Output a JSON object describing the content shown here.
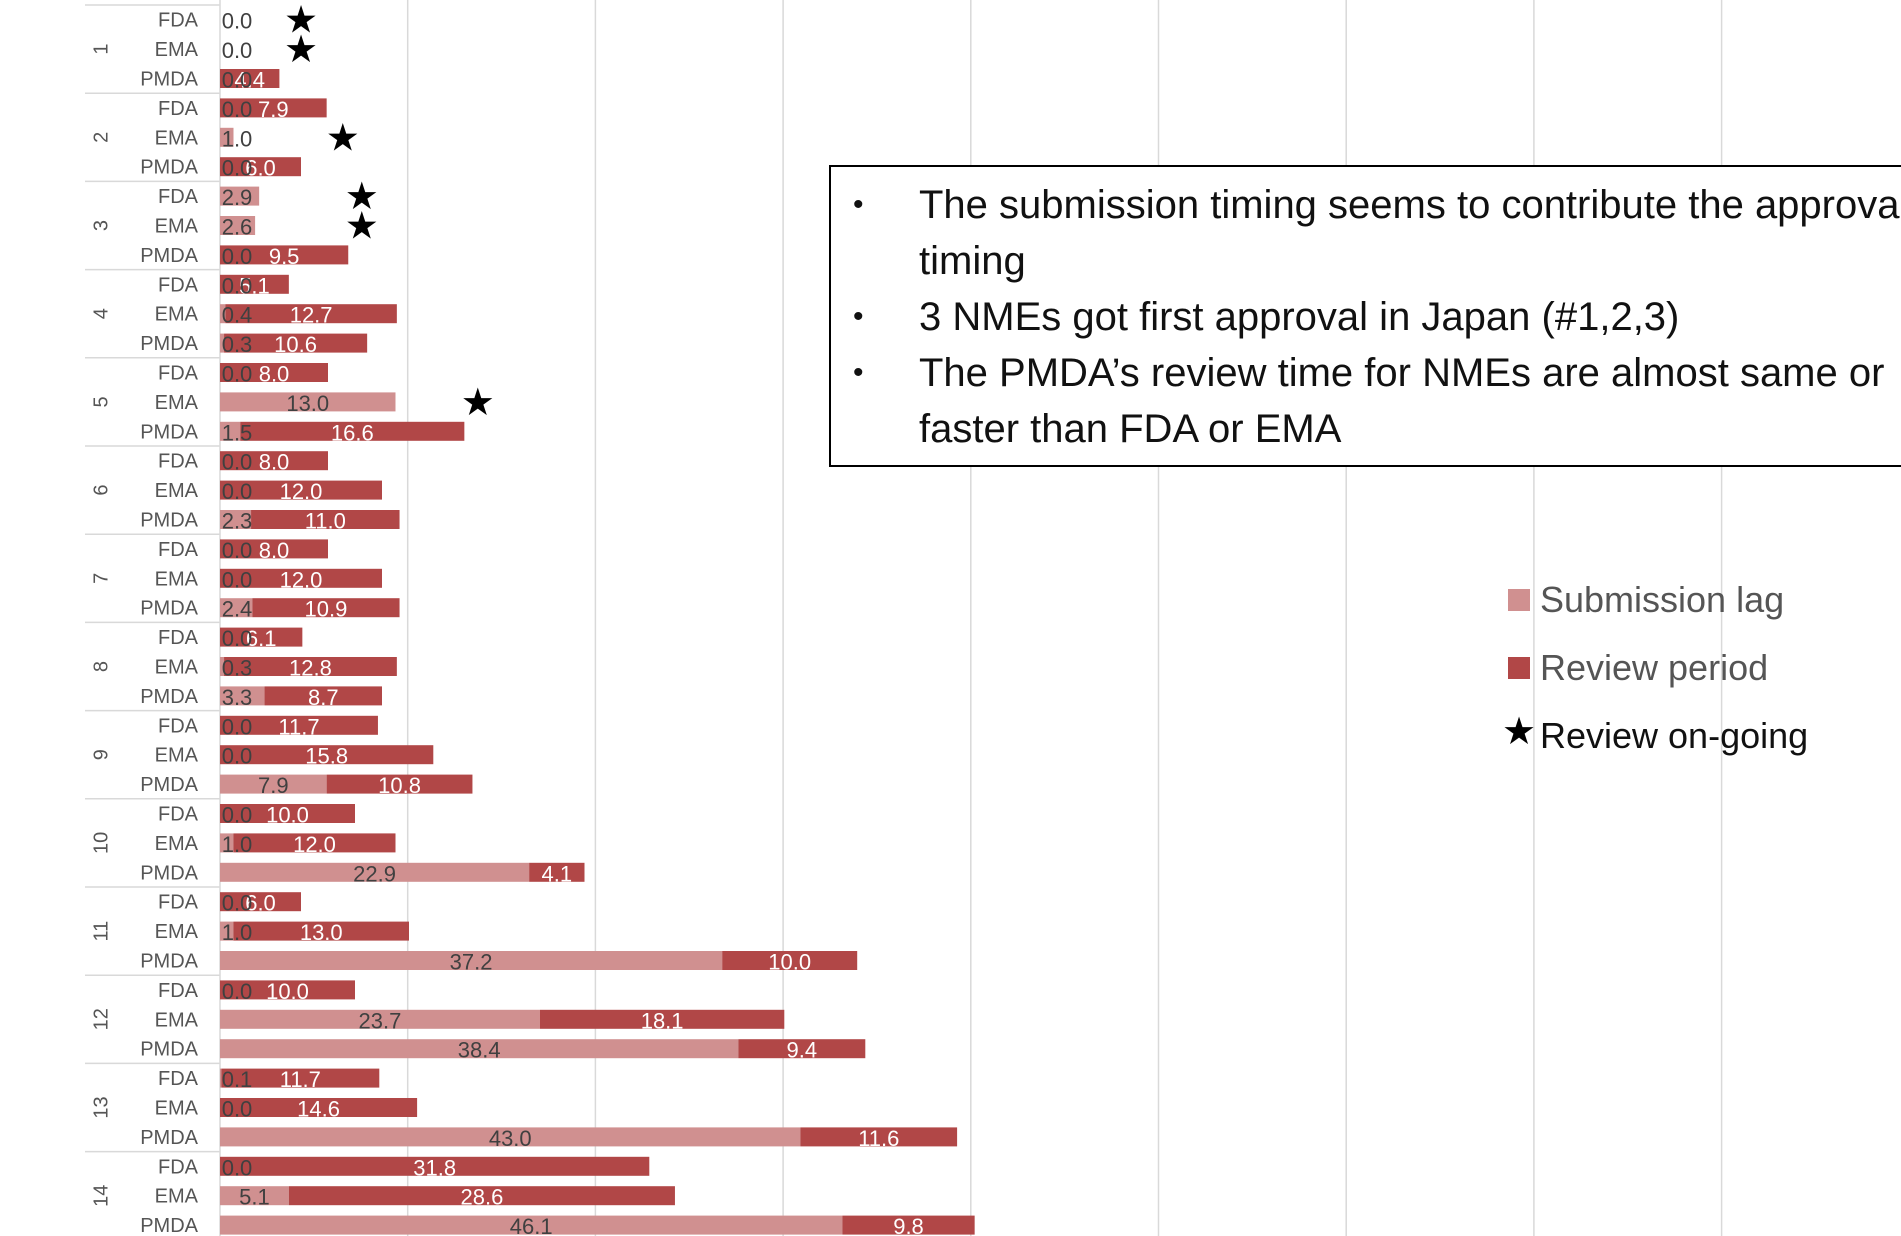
{
  "colors": {
    "lag": "#D09090",
    "review": "#B14747",
    "grid": "#D9D9D9",
    "label": "#555555"
  },
  "callout": {
    "bullets": [
      "The submission timing seems to contribute the approval timing",
      "3 NMEs got first approval in Japan (#1,2,3)",
      "The PMDA’s review time for NMEs are almost same or faster than FDA or EMA"
    ]
  },
  "legend": {
    "lag_label": "Submission lag",
    "review_label": "Review period",
    "ongoing_label": "Review on-going",
    "ongoing_icon": "star-icon"
  },
  "chart_data": {
    "type": "bar",
    "orientation": "horizontal",
    "stacked": true,
    "grid": true,
    "legend_position": "right",
    "series_names": [
      "Submission lag",
      "Review period"
    ],
    "groups": [
      {
        "group": "1",
        "rows": [
          {
            "agency": "FDA",
            "lag": 0.0,
            "lag_label": "0.0",
            "review": null,
            "review_label": "",
            "ongoing": true,
            "star_pos": 6.0
          },
          {
            "agency": "EMA",
            "lag": 0.0,
            "lag_label": "0.0",
            "review": null,
            "review_label": "",
            "ongoing": true,
            "star_pos": 6.0
          },
          {
            "agency": "PMDA",
            "lag": 0.0,
            "lag_label": "0.0",
            "review": 4.4,
            "review_label": "4.4",
            "ongoing": false
          }
        ]
      },
      {
        "group": "2",
        "rows": [
          {
            "agency": "FDA",
            "lag": 0.0,
            "lag_label": "0.0",
            "review": 7.9,
            "review_label": "7.9",
            "ongoing": false
          },
          {
            "agency": "EMA",
            "lag": 1.0,
            "lag_label": "1.0",
            "review": null,
            "review_label": "",
            "ongoing": true,
            "star_pos": 9.1
          },
          {
            "agency": "PMDA",
            "lag": 0.0,
            "lag_label": "0.0",
            "review": 6.0,
            "review_label": "6.0",
            "ongoing": false
          }
        ]
      },
      {
        "group": "3",
        "rows": [
          {
            "agency": "FDA",
            "lag": 2.9,
            "lag_label": "2.9",
            "review": null,
            "review_label": "",
            "ongoing": true,
            "star_pos": 10.5
          },
          {
            "agency": "EMA",
            "lag": 2.6,
            "lag_label": "2.6",
            "review": null,
            "review_label": "",
            "ongoing": true,
            "star_pos": 10.5
          },
          {
            "agency": "PMDA",
            "lag": 0.0,
            "lag_label": "0.0",
            "review": 9.5,
            "review_label": "9.5",
            "ongoing": false
          }
        ]
      },
      {
        "group": "4",
        "rows": [
          {
            "agency": "FDA",
            "lag": 0.0,
            "lag_label": "0.0",
            "review": 5.1,
            "review_label": "5.1",
            "ongoing": false
          },
          {
            "agency": "EMA",
            "lag": 0.4,
            "lag_label": "0.4",
            "review": 12.7,
            "review_label": "12.7",
            "ongoing": false
          },
          {
            "agency": "PMDA",
            "lag": 0.3,
            "lag_label": "0.3",
            "review": 10.6,
            "review_label": "10.6",
            "ongoing": false
          }
        ]
      },
      {
        "group": "5",
        "rows": [
          {
            "agency": "FDA",
            "lag": 0.0,
            "lag_label": "0.0",
            "review": 8.0,
            "review_label": "8.0",
            "ongoing": false
          },
          {
            "agency": "EMA",
            "lag": 13.0,
            "lag_label": "13.0",
            "review": null,
            "review_label": "",
            "ongoing": true,
            "star_pos": 19.1
          },
          {
            "agency": "PMDA",
            "lag": 1.5,
            "lag_label": "1.5",
            "review": 16.6,
            "review_label": "16.6",
            "ongoing": false
          }
        ]
      },
      {
        "group": "6",
        "rows": [
          {
            "agency": "FDA",
            "lag": 0.0,
            "lag_label": "0.0",
            "review": 8.0,
            "review_label": "8.0",
            "ongoing": false
          },
          {
            "agency": "EMA",
            "lag": 0.0,
            "lag_label": "0.0",
            "review": 12.0,
            "review_label": "12.0",
            "ongoing": false
          },
          {
            "agency": "PMDA",
            "lag": 2.3,
            "lag_label": "2.3",
            "review": 11.0,
            "review_label": "11.0",
            "ongoing": false
          }
        ]
      },
      {
        "group": "7",
        "rows": [
          {
            "agency": "FDA",
            "lag": 0.0,
            "lag_label": "0.0",
            "review": 8.0,
            "review_label": "8.0",
            "ongoing": false
          },
          {
            "agency": "EMA",
            "lag": 0.0,
            "lag_label": "0.0",
            "review": 12.0,
            "review_label": "12.0",
            "ongoing": false
          },
          {
            "agency": "PMDA",
            "lag": 2.4,
            "lag_label": "2.4",
            "review": 10.9,
            "review_label": "10.9",
            "ongoing": false
          }
        ]
      },
      {
        "group": "8",
        "rows": [
          {
            "agency": "FDA",
            "lag": 0.0,
            "lag_label": "0.0",
            "review": 6.1,
            "review_label": "6.1",
            "ongoing": false
          },
          {
            "agency": "EMA",
            "lag": 0.3,
            "lag_label": "0.3",
            "review": 12.8,
            "review_label": "12.8",
            "ongoing": false
          },
          {
            "agency": "PMDA",
            "lag": 3.3,
            "lag_label": "3.3",
            "review": 8.7,
            "review_label": "8.7",
            "ongoing": false
          }
        ]
      },
      {
        "group": "9",
        "rows": [
          {
            "agency": "FDA",
            "lag": 0.0,
            "lag_label": "0.0",
            "review": 11.7,
            "review_label": "11.7",
            "ongoing": false
          },
          {
            "agency": "EMA",
            "lag": 0.0,
            "lag_label": "0.0",
            "review": 15.8,
            "review_label": "15.8",
            "ongoing": false
          },
          {
            "agency": "PMDA",
            "lag": 7.9,
            "lag_label": "7.9",
            "review": 10.8,
            "review_label": "10.8",
            "ongoing": false
          }
        ]
      },
      {
        "group": "10",
        "rows": [
          {
            "agency": "FDA",
            "lag": 0.0,
            "lag_label": "0.0",
            "review": 10.0,
            "review_label": "10.0",
            "ongoing": false
          },
          {
            "agency": "EMA",
            "lag": 1.0,
            "lag_label": "1.0",
            "review": 12.0,
            "review_label": "12.0",
            "ongoing": false
          },
          {
            "agency": "PMDA",
            "lag": 22.9,
            "lag_label": "22.9",
            "review": 4.1,
            "review_label": "4.1",
            "ongoing": false
          }
        ]
      },
      {
        "group": "11",
        "rows": [
          {
            "agency": "FDA",
            "lag": 0.0,
            "lag_label": "0.0",
            "review": 6.0,
            "review_label": "6.0",
            "ongoing": false
          },
          {
            "agency": "EMA",
            "lag": 1.0,
            "lag_label": "1.0",
            "review": 13.0,
            "review_label": "13.0",
            "ongoing": false
          },
          {
            "agency": "PMDA",
            "lag": 37.2,
            "lag_label": "37.2",
            "review": 10.0,
            "review_label": "10.0",
            "ongoing": false
          }
        ]
      },
      {
        "group": "12",
        "rows": [
          {
            "agency": "FDA",
            "lag": 0.0,
            "lag_label": "0.0",
            "review": 10.0,
            "review_label": "10.0",
            "ongoing": false
          },
          {
            "agency": "EMA",
            "lag": 23.7,
            "lag_label": "23.7",
            "review": 18.1,
            "review_label": "18.1",
            "ongoing": false
          },
          {
            "agency": "PMDA",
            "lag": 38.4,
            "lag_label": "38.4",
            "review": 9.4,
            "review_label": "9.4",
            "ongoing": false
          }
        ]
      },
      {
        "group": "13",
        "rows": [
          {
            "agency": "FDA",
            "lag": 0.1,
            "lag_label": "0.1",
            "review": 11.7,
            "review_label": "11.7",
            "ongoing": false
          },
          {
            "agency": "EMA",
            "lag": 0.0,
            "lag_label": "0.0",
            "review": 14.6,
            "review_label": "14.6",
            "ongoing": false
          },
          {
            "agency": "PMDA",
            "lag": 43.0,
            "lag_label": "43.0",
            "review": 11.6,
            "review_label": "11.6",
            "ongoing": false
          }
        ]
      },
      {
        "group": "14",
        "rows": [
          {
            "agency": "FDA",
            "lag": 0.0,
            "lag_label": "0.0",
            "review": 31.8,
            "review_label": "31.8",
            "ongoing": false
          },
          {
            "agency": "EMA",
            "lag": 5.1,
            "lag_label": "5.1",
            "review": 28.6,
            "review_label": "28.6",
            "ongoing": false
          },
          {
            "agency": "PMDA",
            "lag": 46.1,
            "lag_label": "46.1",
            "review": 9.8,
            "review_label": "9.8",
            "ongoing": false
          }
        ]
      }
    ]
  }
}
